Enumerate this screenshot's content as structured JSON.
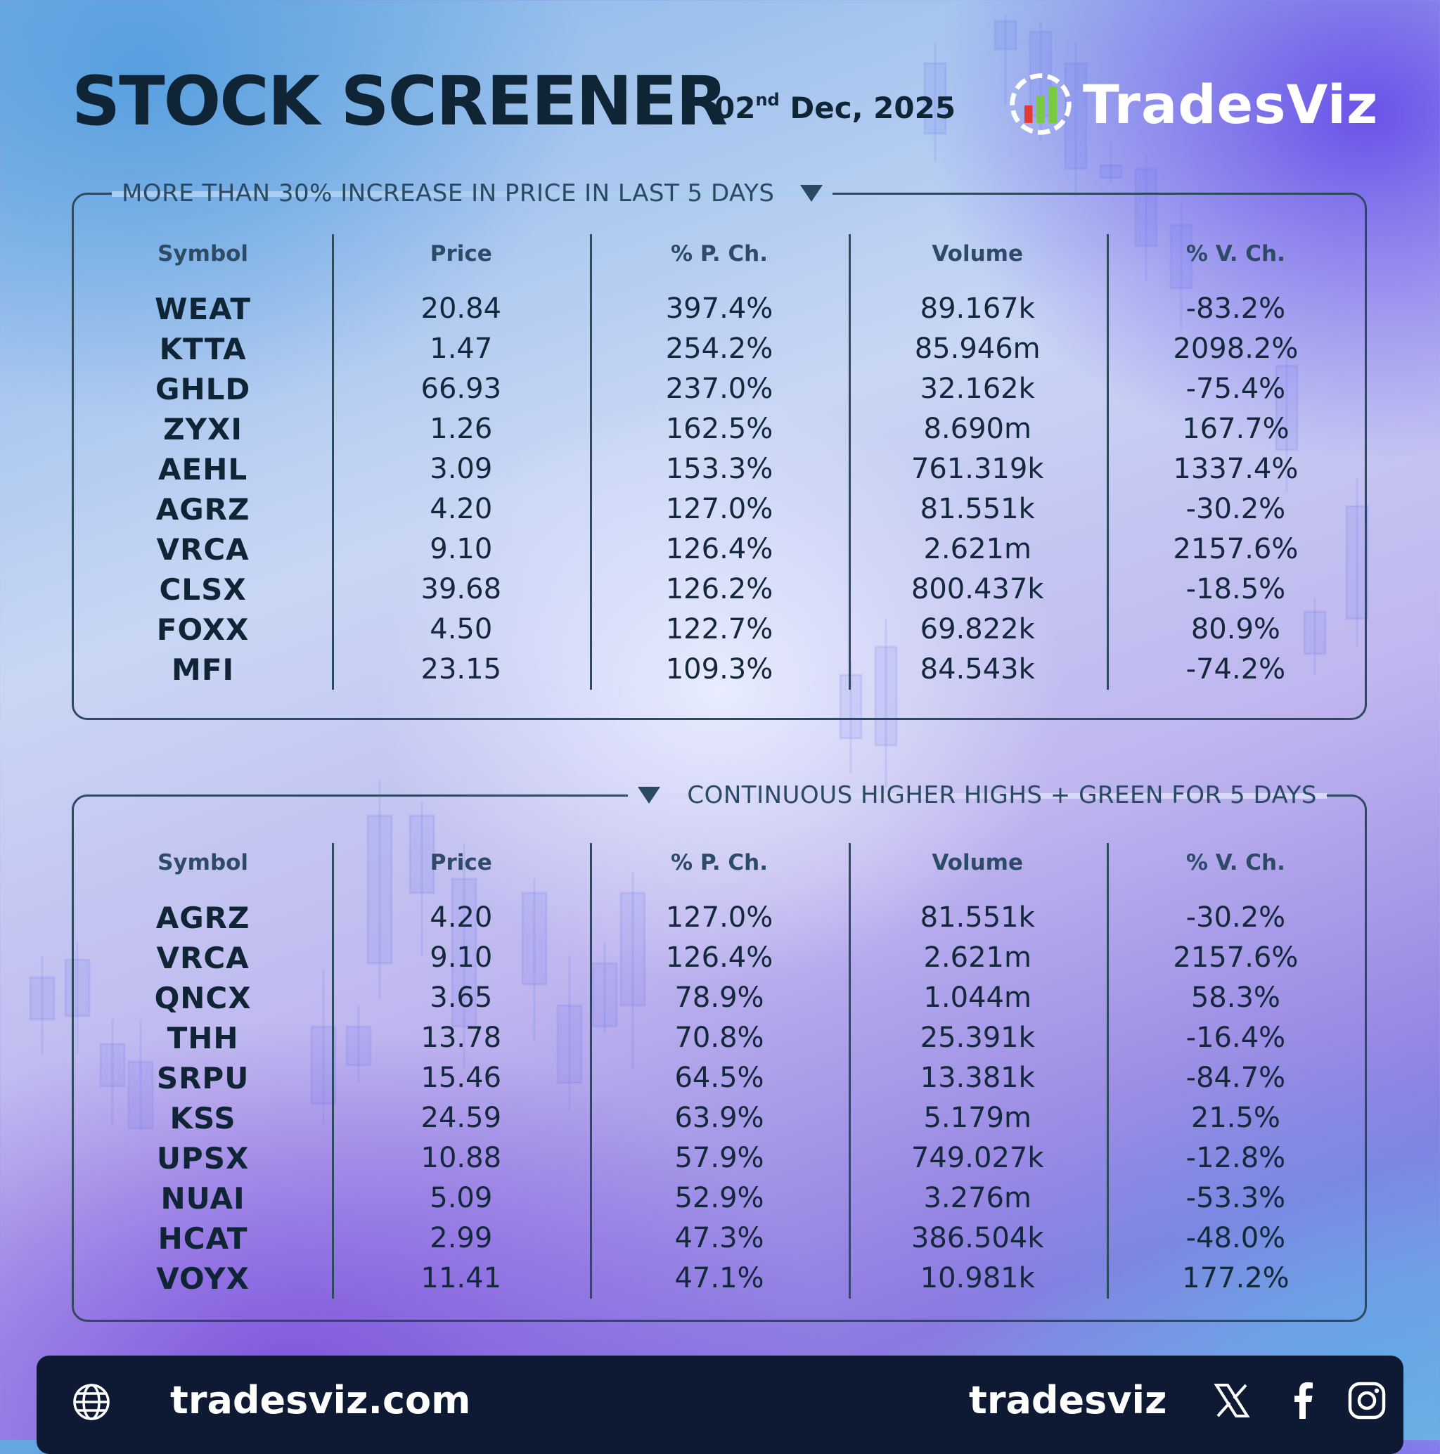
{
  "header": {
    "title": "STOCK SCREENER",
    "date_day": "02",
    "date_suffix": "nd",
    "date_rest": " Dec, 2025",
    "brand": "TradesViz"
  },
  "columns": [
    "Symbol",
    "Price",
    "% P. Ch.",
    "Volume",
    "% V. Ch."
  ],
  "panel1": {
    "label": "MORE THAN 30% INCREASE IN PRICE IN LAST 5 DAYS",
    "rows": [
      [
        "WEAT",
        "20.84",
        "397.4%",
        "89.167k",
        "-83.2%"
      ],
      [
        "KTTA",
        "1.47",
        "254.2%",
        "85.946m",
        "2098.2%"
      ],
      [
        "GHLD",
        "66.93",
        "237.0%",
        "32.162k",
        "-75.4%"
      ],
      [
        "ZYXI",
        "1.26",
        "162.5%",
        "8.690m",
        "167.7%"
      ],
      [
        "AEHL",
        "3.09",
        "153.3%",
        "761.319k",
        "1337.4%"
      ],
      [
        "AGRZ",
        "4.20",
        "127.0%",
        "81.551k",
        "-30.2%"
      ],
      [
        "VRCA",
        "9.10",
        "126.4%",
        "2.621m",
        "2157.6%"
      ],
      [
        "CLSX",
        "39.68",
        "126.2%",
        "800.437k",
        "-18.5%"
      ],
      [
        "FOXX",
        "4.50",
        "122.7%",
        "69.822k",
        "80.9%"
      ],
      [
        "MFI",
        "23.15",
        "109.3%",
        "84.543k",
        "-74.2%"
      ]
    ]
  },
  "panel2": {
    "label": "CONTINUOUS HIGHER HIGHS + GREEN FOR 5 DAYS",
    "rows": [
      [
        "AGRZ",
        "4.20",
        "127.0%",
        "81.551k",
        "-30.2%"
      ],
      [
        "VRCA",
        "9.10",
        "126.4%",
        "2.621m",
        "2157.6%"
      ],
      [
        "QNCX",
        "3.65",
        "78.9%",
        "1.044m",
        "58.3%"
      ],
      [
        "THH",
        "13.78",
        "70.8%",
        "25.391k",
        "-16.4%"
      ],
      [
        "SRPU",
        "15.46",
        "64.5%",
        "13.381k",
        "-84.7%"
      ],
      [
        "KSS",
        "24.59",
        "63.9%",
        "5.179m",
        "21.5%"
      ],
      [
        "UPSX",
        "10.88",
        "57.9%",
        "749.027k",
        "-12.8%"
      ],
      [
        "NUAI",
        "5.09",
        "52.9%",
        "3.276m",
        "-53.3%"
      ],
      [
        "HCAT",
        "2.99",
        "47.3%",
        "386.504k",
        "-48.0%"
      ],
      [
        "VOYX",
        "11.41",
        "47.1%",
        "10.981k",
        "177.2%"
      ]
    ]
  },
  "footer": {
    "website": "tradesviz.com",
    "handle": "tradesviz"
  },
  "icons": {
    "globe": "globe-icon",
    "x": "x-icon",
    "facebook": "facebook-icon",
    "instagram": "instagram-icon"
  },
  "colors": {
    "text_dark": "#0f2435",
    "border": "#2d4a60",
    "footer_bg": "#0e1a33",
    "logo_green": "#7ac943",
    "logo_red": "#e53935"
  }
}
